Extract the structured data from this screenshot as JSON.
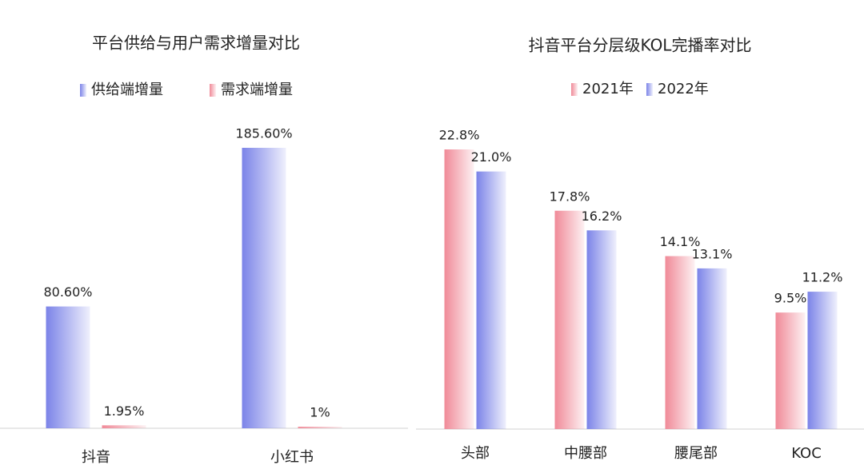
{
  "chart_data": [
    {
      "type": "bar",
      "title": "平台供给与用户需求增量对比",
      "categories": [
        "抖音",
        "小红书"
      ],
      "series": [
        {
          "name": "供给端增量",
          "color": "#7b83e8",
          "values": [
            80.6,
            185.6
          ],
          "value_labels": [
            "80.60%",
            "185.60%"
          ]
        },
        {
          "name": "需求端增量",
          "color": "#f08a98",
          "values": [
            1.95,
            1
          ],
          "value_labels": [
            "1.95%",
            "1%"
          ]
        }
      ]
    },
    {
      "type": "bar",
      "title": "抖音平台分层级KOL完播率对比",
      "categories": [
        "头部",
        "中腰部",
        "腰尾部",
        "KOC"
      ],
      "series": [
        {
          "name": "2021年",
          "color": "#f08a98",
          "values": [
            22.8,
            17.8,
            14.1,
            9.5
          ],
          "value_labels": [
            "22.8%",
            "17.8%",
            "14.1%",
            "9.5%"
          ]
        },
        {
          "name": "2022年",
          "color": "#7b83e8",
          "values": [
            21.0,
            16.2,
            13.1,
            11.2
          ],
          "value_labels": [
            "21.0%",
            "16.2%",
            "13.1%",
            "11.2%"
          ]
        }
      ]
    }
  ]
}
